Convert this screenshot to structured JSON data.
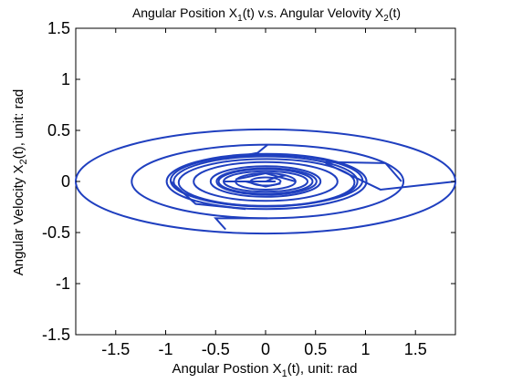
{
  "chart_data": {
    "type": "line",
    "title": {
      "part1": "Angular Position X",
      "sub1": "1",
      "part2": "(t)  v.s.  Angular Velovity X",
      "sub2": "2",
      "part3": "(t)"
    },
    "xlabel": {
      "part1": "Angular Postion X",
      "sub": "1",
      "part2": "(t), unit: rad"
    },
    "ylabel": {
      "part1": "Angular Velocity X",
      "sub": "2",
      "part2": "(t), unit: rad"
    },
    "xlim": [
      -1.9,
      1.9
    ],
    "ylim": [
      -1.5,
      1.5
    ],
    "xticks": [
      -1.5,
      -1,
      -0.5,
      0,
      0.5,
      1,
      1.5
    ],
    "xtick_labels": [
      "-1.5",
      "-1",
      "-0.5",
      "0",
      "0.5",
      "1",
      "1.5"
    ],
    "yticks": [
      1.5,
      1,
      0.5,
      0,
      -0.5,
      -1,
      -1.5
    ],
    "ytick_labels": [
      "1.5",
      "1",
      "0.5",
      "0",
      "-0.5",
      "-1",
      "-1.5"
    ],
    "grid": false,
    "line_color": "#1f3fbf",
    "series": [
      {
        "ellipses": [
          {
            "rx": 1.9,
            "ry": 0.51,
            "dx": 0.0,
            "dy": 0.0
          },
          {
            "rx": 1.36,
            "ry": 0.36,
            "dx": 0.02,
            "dy": 0.0
          },
          {
            "rx": 1.0,
            "ry": 0.27,
            "dx": 0.01,
            "dy": 0.0
          },
          {
            "rx": 0.96,
            "ry": 0.25,
            "dx": 0.01,
            "dy": 0.01
          },
          {
            "rx": 0.92,
            "ry": 0.245,
            "dx": 0.0,
            "dy": 0.0
          },
          {
            "rx": 0.88,
            "ry": 0.23,
            "dx": 0.01,
            "dy": -0.01
          },
          {
            "rx": 0.72,
            "ry": 0.19,
            "dx": 0.0,
            "dy": 0.0
          },
          {
            "rx": 0.55,
            "ry": 0.15,
            "dx": 0.0,
            "dy": 0.0
          },
          {
            "rx": 0.5,
            "ry": 0.13,
            "dx": 0.01,
            "dy": 0.0
          },
          {
            "rx": 0.47,
            "ry": 0.12,
            "dx": 0.0,
            "dy": 0.0
          },
          {
            "rx": 0.42,
            "ry": 0.1,
            "dx": 0.0,
            "dy": 0.0
          },
          {
            "rx": 0.3,
            "ry": 0.08,
            "dx": 0.0,
            "dy": 0.0
          },
          {
            "rx": 0.15,
            "ry": 0.04,
            "dx": 0.0,
            "dy": 0.0
          }
        ],
        "segments": [
          [
            [
              0.02,
              0.36
            ],
            [
              -0.08,
              0.28
            ],
            [
              -0.4,
              0.22
            ]
          ],
          [
            [
              0.02,
              -0.36
            ],
            [
              -0.5,
              -0.36
            ],
            [
              -0.4,
              -0.47
            ]
          ],
          [
            [
              1.36,
              0.0
            ],
            [
              1.2,
              0.18
            ],
            [
              0.6,
              0.19
            ]
          ],
          [
            [
              -0.95,
              0.0
            ],
            [
              -0.7,
              -0.22
            ],
            [
              -0.2,
              -0.27
            ]
          ],
          [
            [
              -0.42,
              0.0
            ],
            [
              -0.15,
              0.0
            ],
            [
              0.1,
              0.0
            ]
          ],
          [
            [
              -0.3,
              0.02
            ],
            [
              0.0,
              0.08
            ],
            [
              0.3,
              0.0
            ]
          ],
          [
            [
              0.0,
              0.0
            ],
            [
              0.1,
              0.04
            ],
            [
              0.2,
              0.06
            ]
          ],
          [
            [
              -0.2,
              0.0
            ],
            [
              0.0,
              -0.05
            ],
            [
              0.15,
              -0.02
            ]
          ],
          [
            [
              1.9,
              0.0
            ],
            [
              1.15,
              -0.08
            ],
            [
              0.6,
              0.18
            ]
          ]
        ]
      }
    ]
  }
}
